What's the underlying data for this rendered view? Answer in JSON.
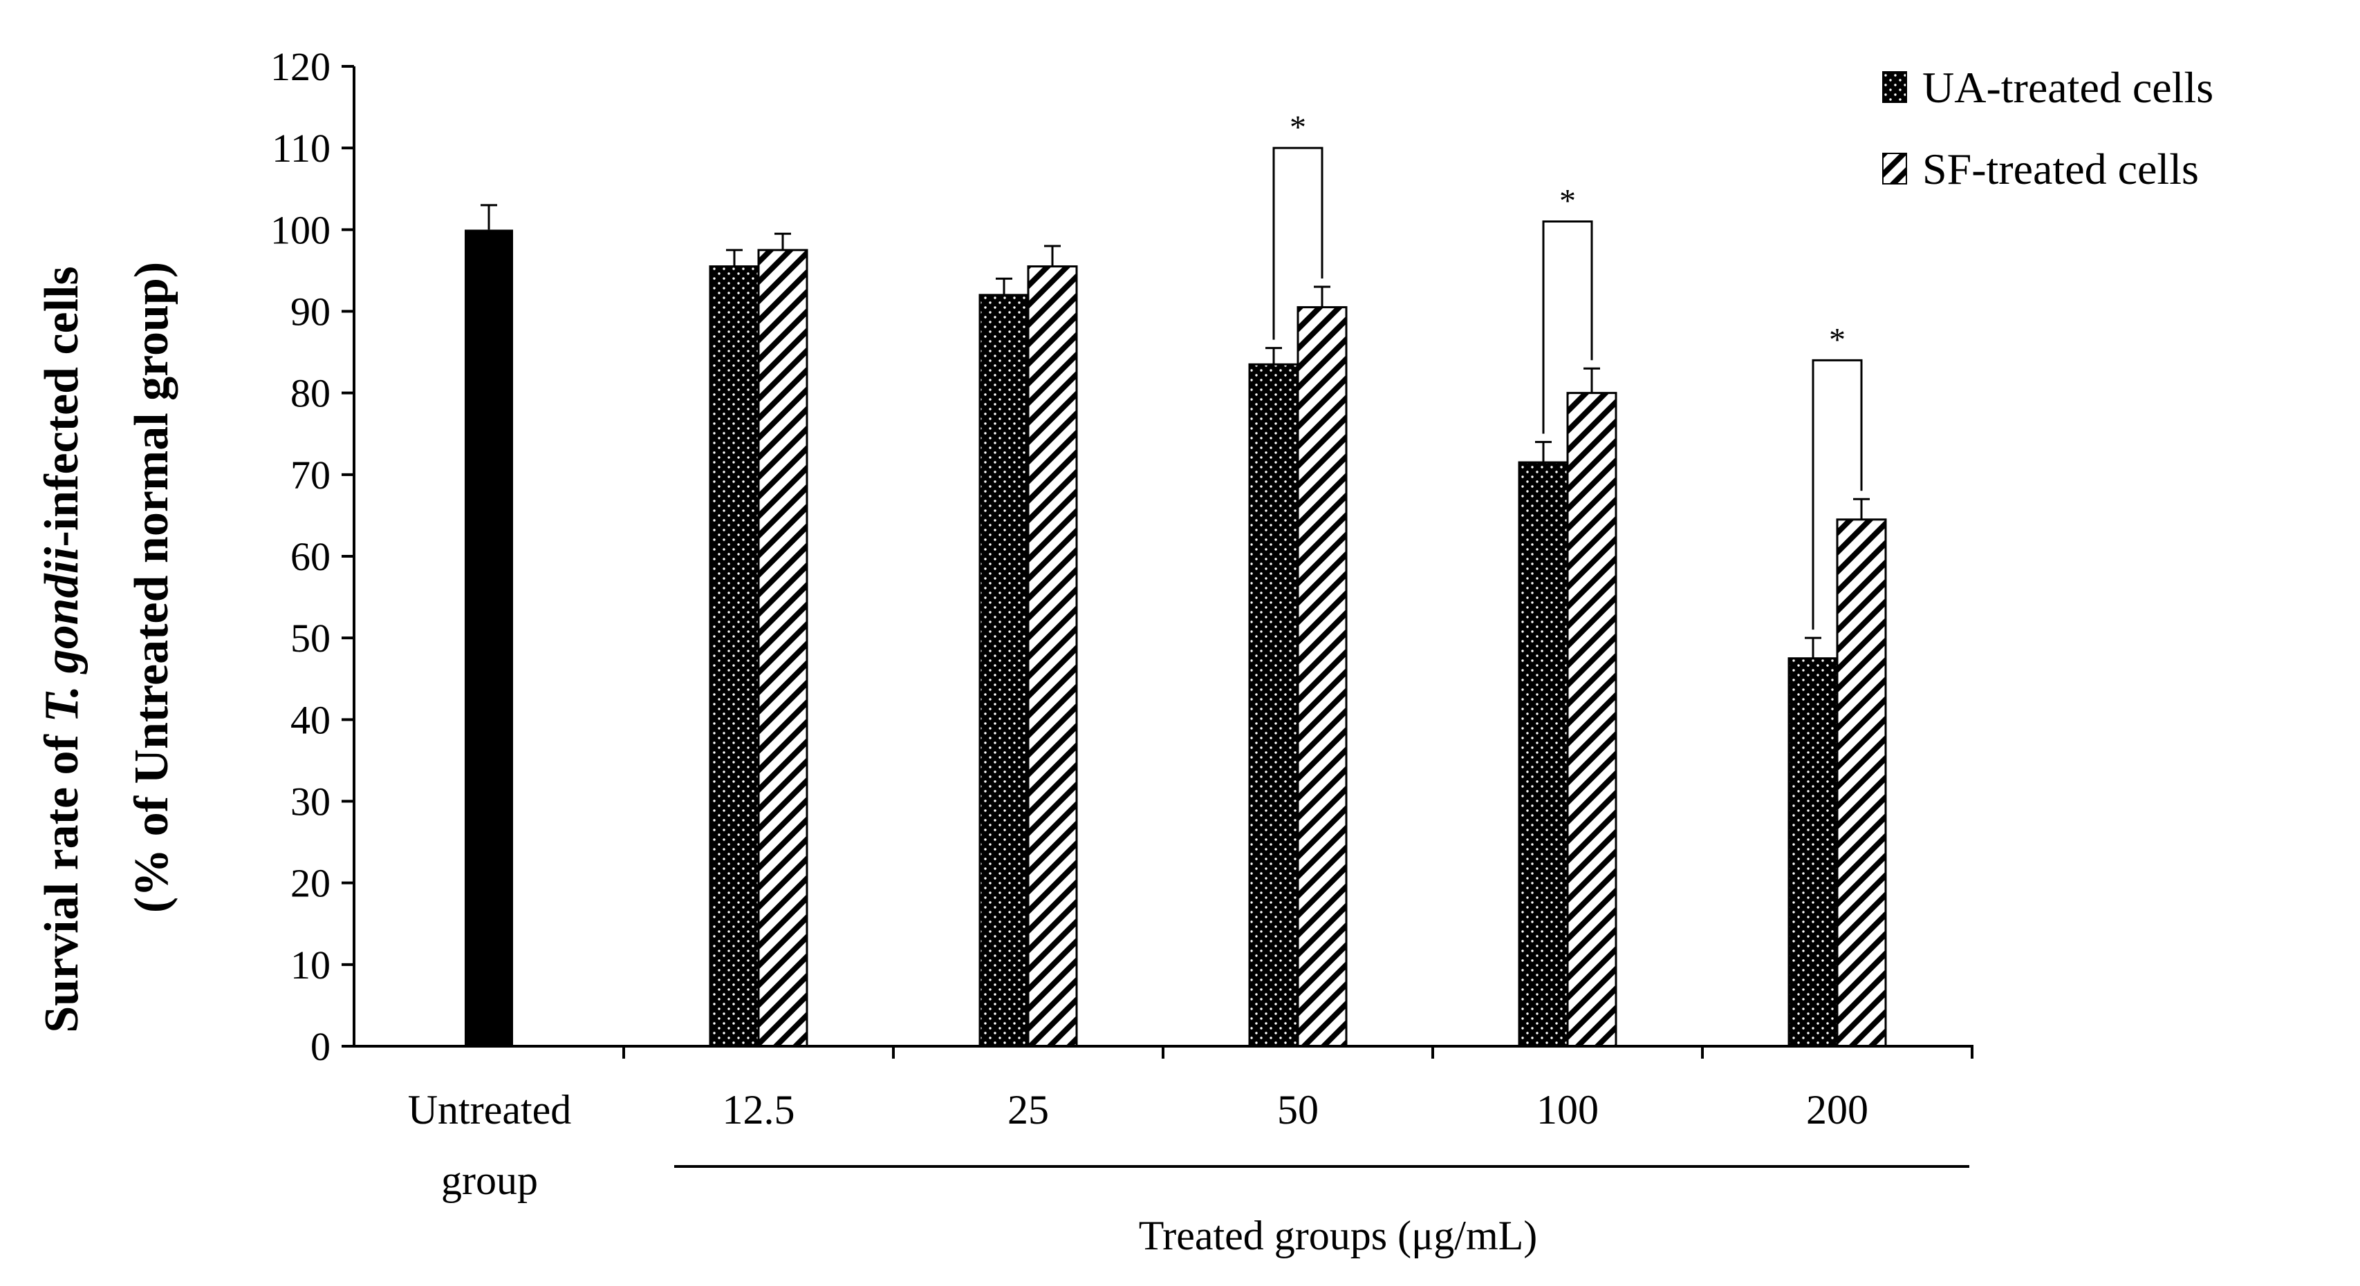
{
  "chart_data": {
    "type": "bar",
    "ylabel_line1_prefix": "Survial rate of ",
    "ylabel_line1_italic": "T. gondii",
    "ylabel_line1_suffix": "-infected cells",
    "ylabel_line2": "(% of Untreated normal group)",
    "xlabel": "Treated groups (μg/mL)",
    "ylim": [
      0,
      120
    ],
    "yticks": [
      "0",
      "10",
      "20",
      "30",
      "40",
      "50",
      "60",
      "70",
      "80",
      "90",
      "100",
      "110",
      "120"
    ],
    "control": {
      "label_line1": "Untreated",
      "label_line2": "group",
      "value": 100,
      "error": 3
    },
    "categories": [
      "12.5",
      "25",
      "50",
      "100",
      "200"
    ],
    "series": [
      {
        "name": "UA-treated cells",
        "pattern": "dots",
        "values": [
          95.5,
          92,
          83.5,
          71.5,
          47.5
        ],
        "errors": [
          2,
          2,
          2,
          2.5,
          2.5
        ]
      },
      {
        "name": "SF-treated cells",
        "pattern": "hatch",
        "values": [
          97.5,
          95.5,
          90.5,
          80,
          64.5
        ],
        "errors": [
          2,
          2.5,
          2.5,
          3,
          2.5
        ]
      }
    ],
    "significance": [
      {
        "category": "50",
        "label": "*",
        "top": 110
      },
      {
        "category": "100",
        "label": "*",
        "top": 101
      },
      {
        "category": "200",
        "label": "*",
        "top": 84
      }
    ]
  }
}
